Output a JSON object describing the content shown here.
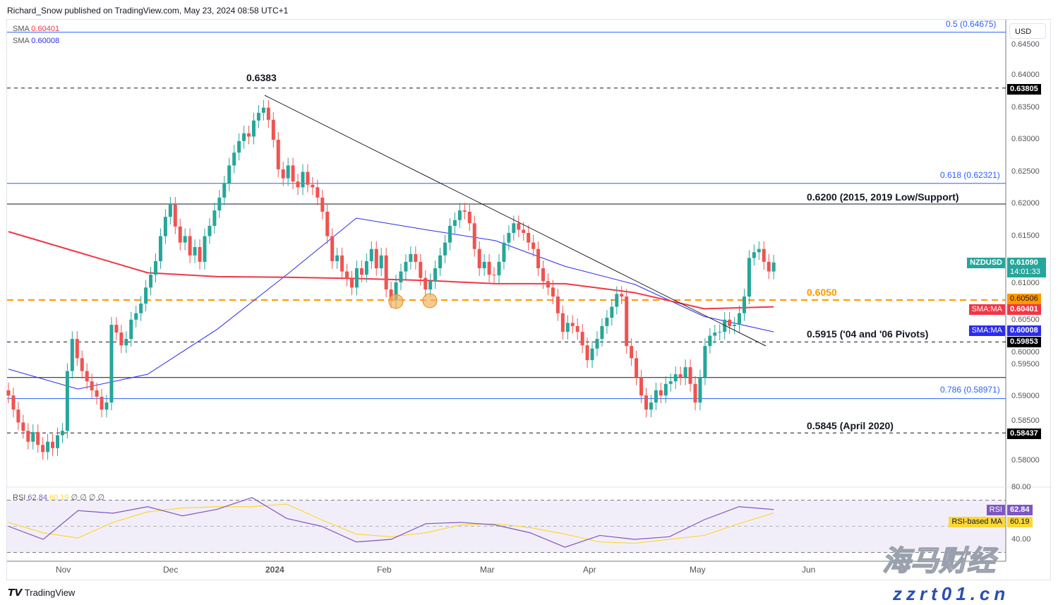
{
  "header": {
    "publisher": "Richard_Snow published on TradingView.com, May 23, 2024 08:58 UTC+1"
  },
  "legend": {
    "sma1_label": "SMA",
    "sma1_value": "0.60401",
    "sma2_label": "SMA",
    "sma2_value": "0.60008"
  },
  "rsi_legend": {
    "label": "RSI",
    "rsi": "62.84",
    "ma": "60.19",
    "extra": "∅ ∅ ∅ ∅"
  },
  "price_axis": {
    "currency": "USD",
    "ticks": [
      "0.64500",
      "0.64000",
      "0.63500",
      "0.63000",
      "0.62500",
      "0.62000",
      "0.61500",
      "0.61000",
      "0.60500",
      "0.60000",
      "0.59500",
      "0.59000",
      "0.58500",
      "0.58000"
    ],
    "rsi_ticks": [
      "80.00",
      "40.00"
    ]
  },
  "time_axis": {
    "ticks": [
      "Nov",
      "Dec",
      "2024",
      "Feb",
      "Mar",
      "Apr",
      "May",
      "Jun"
    ]
  },
  "tags": {
    "symbol": "NZDUSD",
    "last_price": "0.61090",
    "countdown": "14:01:33",
    "level_63805": "0.63805",
    "level_60506": "0.60506",
    "sma_red_label": "SMA:MA",
    "sma_red": "0.60401",
    "sma_blue_label": "SMA:MA",
    "sma_blue": "0.60008",
    "level_59853": "0.59853",
    "level_58437": "0.58437",
    "rsi_label": "RSI",
    "rsi_value": "62.84",
    "rsi_ma_label": "RSI-based MA",
    "rsi_ma_value": "60.19"
  },
  "annotations": {
    "fib_05": "0.5 (0.64675)",
    "fib_0618": "0.618 (0.62321)",
    "fib_0786": "0.786 (0.58971)",
    "high": "0.6383",
    "support_6200": "0.6200 (2015, 2019 Low/Support)",
    "level_6050": "0.6050",
    "pivots_5915": "0.5915 ('04 and '06 Pivots)",
    "april_2020": "0.5845 (April 2020)"
  },
  "footer": {
    "brand": "TradingView"
  },
  "watermark": {
    "cn": "海马财经",
    "url": "zzrt01.cn"
  },
  "colors": {
    "up": "#26a69a",
    "down": "#ef5350",
    "sma200": "#f23645",
    "sma50": "#2c2cf0",
    "fib": "#2962ff",
    "orange": "#ff9800",
    "rsi": "#7e57c2",
    "rsi_ma": "#fdd835"
  },
  "chart_data": {
    "type": "candlestick",
    "symbol": "NZDUSD",
    "timeframe_ticks": [
      "Nov",
      "Dec",
      "2024",
      "Feb",
      "Mar",
      "Apr",
      "May",
      "Jun"
    ],
    "ylim": [
      0.5755,
      0.6475
    ],
    "closes": [
      0.5902,
      0.588,
      0.586,
      0.5847,
      0.583,
      0.5845,
      0.5825,
      0.5814,
      0.583,
      0.582,
      0.584,
      0.5847,
      0.594,
      0.599,
      0.596,
      0.594,
      0.5924,
      0.591,
      0.59,
      0.588,
      0.5891,
      0.6012,
      0.6,
      0.598,
      0.599,
      0.602,
      0.603,
      0.6045,
      0.607,
      0.609,
      0.6111,
      0.615,
      0.618,
      0.6199,
      0.6165,
      0.614,
      0.615,
      0.612,
      0.6133,
      0.611,
      0.615,
      0.6166,
      0.619,
      0.621,
      0.6232,
      0.626,
      0.628,
      0.6298,
      0.631,
      0.6305,
      0.633,
      0.6342,
      0.635,
      0.6331,
      0.63,
      0.6254,
      0.624,
      0.626,
      0.6235,
      0.6226,
      0.625,
      0.623,
      0.6226,
      0.621,
      0.6188,
      0.615,
      0.6111,
      0.612,
      0.6095,
      0.6084,
      0.607,
      0.61,
      0.609,
      0.6111,
      0.613,
      0.61,
      0.612,
      0.6067,
      0.605,
      0.6078,
      0.6095,
      0.611,
      0.6122,
      0.611,
      0.6085,
      0.6067,
      0.608,
      0.61,
      0.612,
      0.614,
      0.6166,
      0.6175,
      0.619,
      0.6188,
      0.617,
      0.613,
      0.61,
      0.611,
      0.609,
      0.6089,
      0.611,
      0.614,
      0.6155,
      0.617,
      0.616,
      0.6155,
      0.614,
      0.613,
      0.61,
      0.608,
      0.607,
      0.6056,
      0.603,
      0.6001,
      0.6015,
      0.601,
      0.6001,
      0.598,
      0.5957,
      0.5975,
      0.599,
      0.601,
      0.6023,
      0.604,
      0.606,
      0.6056,
      0.5979,
      0.596,
      0.593,
      0.5902,
      0.588,
      0.5891,
      0.591,
      0.5902,
      0.592,
      0.5924,
      0.5935,
      0.593,
      0.5946,
      0.592,
      0.5891,
      0.593,
      0.5979,
      0.5995,
      0.6,
      0.6001,
      0.602,
      0.601,
      0.6012,
      0.603,
      0.6056,
      0.6116,
      0.6125,
      0.613,
      0.611,
      0.6095,
      0.6109
    ],
    "sma_red": [
      0.6157,
      0.6125,
      0.6093,
      0.6087,
      0.6086,
      0.6084,
      0.6081,
      0.6076,
      0.6076,
      0.6062,
      0.6037,
      0.604
    ],
    "sma_blue": [
      0.5943,
      0.5912,
      0.5935,
      0.6005,
      0.609,
      0.6178,
      0.616,
      0.6143,
      0.6103,
      0.6075,
      0.6025,
      0.6001
    ],
    "levels": [
      {
        "price": 0.64675,
        "style": "fib"
      },
      {
        "price": 0.63805,
        "style": "dashed"
      },
      {
        "price": 0.62321,
        "style": "fib"
      },
      {
        "price": 0.62,
        "style": "solid"
      },
      {
        "price": 0.60506,
        "style": "orange"
      },
      {
        "price": 0.59853,
        "style": "dashed"
      },
      {
        "price": 0.593,
        "style": "solid"
      },
      {
        "price": 0.58971,
        "style": "fib"
      },
      {
        "price": 0.58437,
        "style": "dashed"
      }
    ],
    "trendline": [
      [
        0.637,
        0.6
      ],
      [
        0.598,
        0.6
      ]
    ],
    "rsi": {
      "ylim": [
        20,
        90
      ],
      "bands": [
        70,
        50,
        30
      ],
      "values": [
        50,
        40,
        62,
        60,
        65,
        58,
        63,
        72,
        56,
        50,
        38,
        40,
        52,
        53,
        51,
        45,
        34,
        43,
        40,
        42,
        55,
        65,
        62.84
      ],
      "ma": [
        53,
        45,
        41,
        53,
        61,
        64,
        65,
        65,
        67,
        55,
        44,
        42,
        45,
        51,
        52,
        49,
        44,
        38,
        37,
        40,
        43,
        52,
        60.19
      ]
    }
  }
}
